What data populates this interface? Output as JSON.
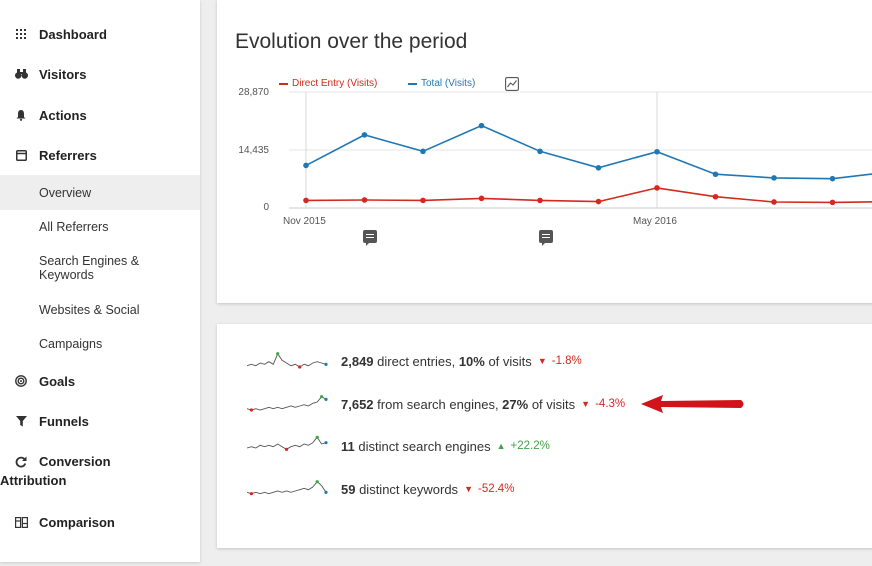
{
  "sidebar": {
    "categories": {
      "dashboard": "Dashboard",
      "visitors": "Visitors",
      "actions": "Actions",
      "referrers": "Referrers",
      "goals": "Goals",
      "funnels": "Funnels",
      "conversion_line1": "Conversion",
      "conversion_line2": "Attribution",
      "comparison": "Comparison"
    },
    "referrer_items": {
      "overview": "Overview",
      "all_referrers": "All Referrers",
      "search_line1": "Search Engines &",
      "search_line2": "Keywords",
      "websites_social": "Websites & Social",
      "campaigns": "Campaigns"
    }
  },
  "evolution": {
    "title": "Evolution over the period",
    "legend": {
      "direct": "Direct Entry (Visits)",
      "total": "Total (Visits)"
    },
    "colors": {
      "direct": "#d4291f",
      "total": "#1f78b4"
    }
  },
  "chart_data": {
    "type": "line",
    "title": "Evolution over the period",
    "y_tick_labels": [
      "28,870",
      "14,435",
      "0"
    ],
    "ylim": [
      0,
      28870
    ],
    "x_tick_labels": [
      "Nov 2015",
      "May 2016"
    ],
    "x": [
      0,
      1,
      2,
      3,
      4,
      5,
      6,
      7,
      8,
      9,
      10
    ],
    "series": [
      {
        "name": "Total (Visits)",
        "values": [
          10600,
          18200,
          14100,
          20500,
          14100,
          10000,
          14000,
          8400,
          7500,
          7300,
          9000
        ]
      },
      {
        "name": "Direct Entry (Visits)",
        "values": [
          1900,
          2000,
          1900,
          2400,
          1900,
          1600,
          5000,
          2800,
          1500,
          1400,
          1600
        ]
      }
    ],
    "annotation_positions": [
      1,
      4
    ]
  },
  "sparklines": [
    {
      "value": "2,849",
      "text1": " direct entries, ",
      "pct": "10%",
      "text2": " of visits",
      "trend": "-1.8%",
      "dir": "down",
      "spark": [
        4,
        5,
        4,
        6,
        5,
        7,
        5,
        13,
        8,
        6,
        4,
        5,
        3,
        5,
        4,
        6,
        7,
        6,
        5
      ]
    },
    {
      "value": "7,652",
      "text1": " from search engines, ",
      "pct": "27%",
      "text2": " of visits",
      "trend": "-4.3%",
      "dir": "down",
      "spark": [
        4,
        3,
        4,
        3,
        4,
        5,
        4,
        5,
        4,
        5,
        6,
        5,
        6,
        7,
        6,
        8,
        9,
        13,
        11
      ]
    },
    {
      "value": "11",
      "text1": " distinct search engines",
      "pct": "",
      "text2": "",
      "trend": "+22.2%",
      "dir": "up",
      "spark": [
        6,
        7,
        6,
        8,
        7,
        8,
        7,
        9,
        7,
        5,
        7,
        8,
        7,
        9,
        8,
        10,
        14,
        9,
        10
      ]
    },
    {
      "value": "59",
      "text1": " distinct keywords",
      "pct": "",
      "text2": "",
      "trend": "-52.4%",
      "dir": "down",
      "spark": [
        5,
        4,
        5,
        4,
        5,
        4,
        5,
        6,
        5,
        6,
        5,
        6,
        7,
        8,
        7,
        9,
        13,
        10,
        5
      ]
    }
  ]
}
